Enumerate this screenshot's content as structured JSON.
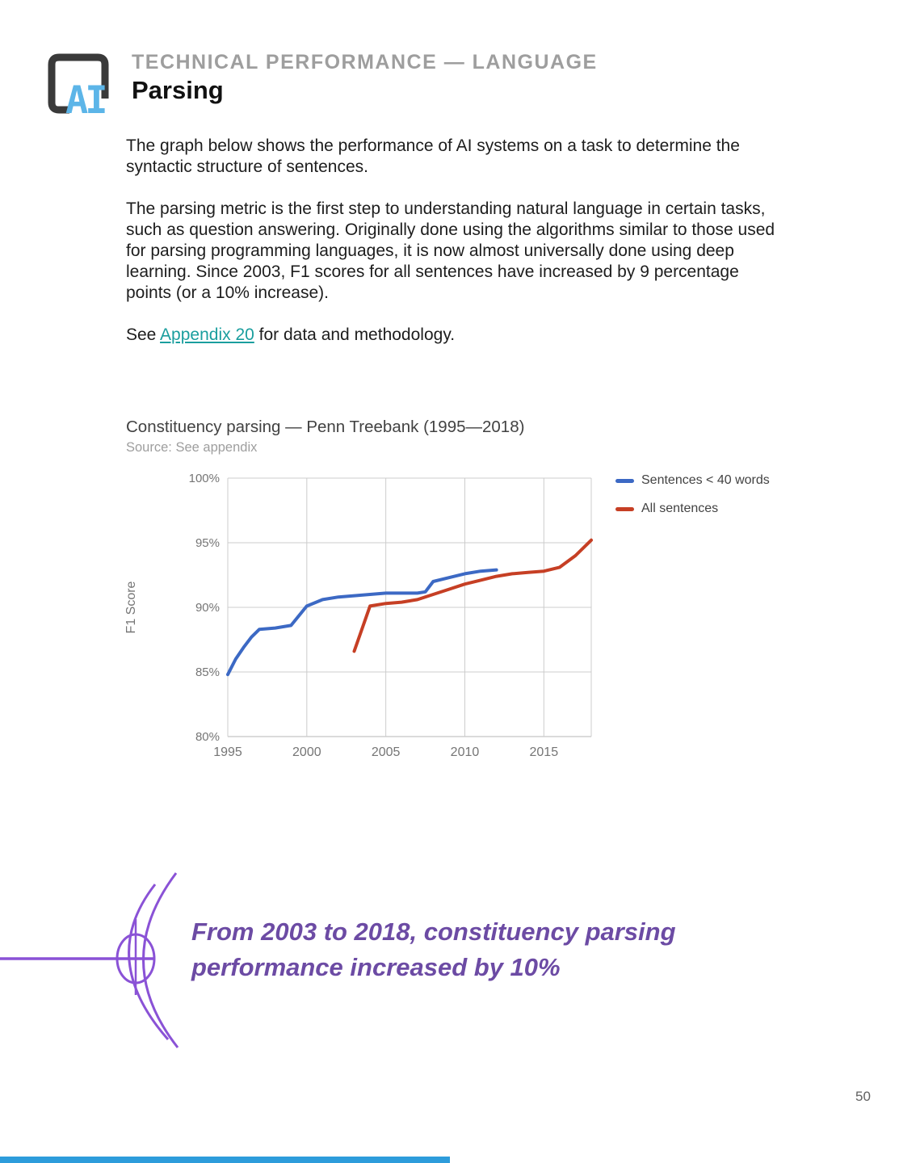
{
  "header": {
    "eyebrow": "TECHNICAL PERFORMANCE — LANGUAGE",
    "title": "Parsing",
    "logo_text": "AI"
  },
  "body": {
    "paragraph1": "The graph below shows the performance of AI systems on a task to determine the syntactic structure of sentences.",
    "paragraph2": "The parsing metric is the first step to understanding natural language in certain tasks, such as question answering. Originally done using the algorithms similar to those used for parsing programming languages, it is now almost universally done using deep learning. Since 2003, F1 scores for all sentences have increased by 9 percentage points (or a 10% increase).",
    "paragraph3_prefix": "See ",
    "paragraph3_link": "Appendix 20",
    "paragraph3_suffix": " for data and methodology."
  },
  "chart": {
    "title": "Constituency parsing — Penn Treebank (1995—2018)",
    "source": "Source: See appendix",
    "legend": [
      {
        "label": "Sentences < 40 words",
        "color": "#3c69c4"
      },
      {
        "label": "All sentences",
        "color": "#c63f24"
      }
    ]
  },
  "chart_data": {
    "type": "line",
    "title": "Constituency parsing — Penn Treebank (1995—2018)",
    "xlabel": "",
    "ylabel": "F1 Score",
    "xlim": [
      1995,
      2018
    ],
    "ylim": [
      80,
      100
    ],
    "x_ticks": [
      1995,
      2000,
      2005,
      2010,
      2015
    ],
    "y_ticks": [
      "80%",
      "85%",
      "90%",
      "95%",
      "100%"
    ],
    "grid": true,
    "legend_position": "top-right",
    "series": [
      {
        "name": "Sentences < 40 words",
        "color": "#3c69c4",
        "points": [
          [
            1995,
            84.8
          ],
          [
            1995.5,
            86.0
          ],
          [
            1996,
            86.9
          ],
          [
            1996.5,
            87.7
          ],
          [
            1997,
            88.3
          ],
          [
            1998,
            88.4
          ],
          [
            1999,
            88.6
          ],
          [
            2000,
            90.1
          ],
          [
            2001,
            90.6
          ],
          [
            2002,
            90.8
          ],
          [
            2003,
            90.9
          ],
          [
            2004,
            91.0
          ],
          [
            2005,
            91.1
          ],
          [
            2006,
            91.1
          ],
          [
            2007,
            91.1
          ],
          [
            2007.5,
            91.2
          ],
          [
            2008,
            92.0
          ],
          [
            2009,
            92.3
          ],
          [
            2010,
            92.6
          ],
          [
            2011,
            92.8
          ],
          [
            2012,
            92.9
          ]
        ]
      },
      {
        "name": "All sentences",
        "color": "#c63f24",
        "points": [
          [
            2003,
            86.6
          ],
          [
            2004,
            90.1
          ],
          [
            2005,
            90.3
          ],
          [
            2006,
            90.4
          ],
          [
            2007,
            90.6
          ],
          [
            2008,
            91.0
          ],
          [
            2009,
            91.4
          ],
          [
            2010,
            91.8
          ],
          [
            2011,
            92.1
          ],
          [
            2012,
            92.4
          ],
          [
            2013,
            92.6
          ],
          [
            2014,
            92.7
          ],
          [
            2015,
            92.8
          ],
          [
            2016,
            93.1
          ],
          [
            2017,
            94.0
          ],
          [
            2018,
            95.2
          ]
        ]
      }
    ]
  },
  "callout": {
    "lines": [
      "From 2003 to 2018, constituency parsing",
      "performance increased by 10%"
    ],
    "color": "#6c4ba4",
    "accent_color": "#8a52d6"
  },
  "footer": {
    "page_number": "50",
    "accent_bar_color": "#2d9cdb"
  }
}
